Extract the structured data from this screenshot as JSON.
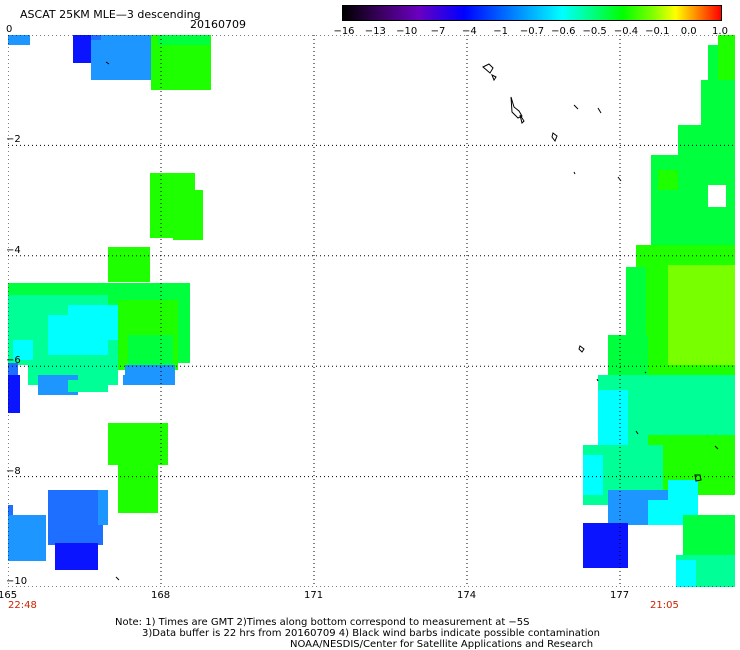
{
  "header": {
    "title": "ASCAT 25KM MLE—3 descending",
    "date": "20160709"
  },
  "colorbar": {
    "ticks": [
      "−16",
      "−13",
      "−10",
      "−7",
      "−4",
      "−1",
      "−0.7",
      "−0.6",
      "−0.5",
      "−0.4",
      "−0.1",
      "0.0",
      "1.0"
    ]
  },
  "map": {
    "y_ticks": [
      "0",
      "−2",
      "−4",
      "−6",
      "−8",
      "−10"
    ],
    "x_ticks": [
      "165",
      "168",
      "171",
      "174",
      "177"
    ],
    "time_left": "22:48",
    "time_right": "21:05",
    "lon_range": [
      165,
      179.5
    ],
    "lat_range": [
      -10,
      0
    ]
  },
  "notes": {
    "line1": "Note: 1) Times are GMT 2)Times along bottom correspond to measurement at −5S",
    "line2": "3)Data buffer is 22 hrs from 20160709 4) Black wind barbs indicate possible contamination",
    "line3": "NOAA/NESDIS/Center for Satellite Applications and Research"
  },
  "colors": {
    "blue": "#0a14ff",
    "mid_blue": "#1e6eff",
    "sky_blue": "#1e96ff",
    "cyan": "#00ffff",
    "aqua_green": "#00ff96",
    "green": "#00ff3c",
    "bright_green": "#1eff00",
    "yellow_green": "#78ff00"
  }
}
